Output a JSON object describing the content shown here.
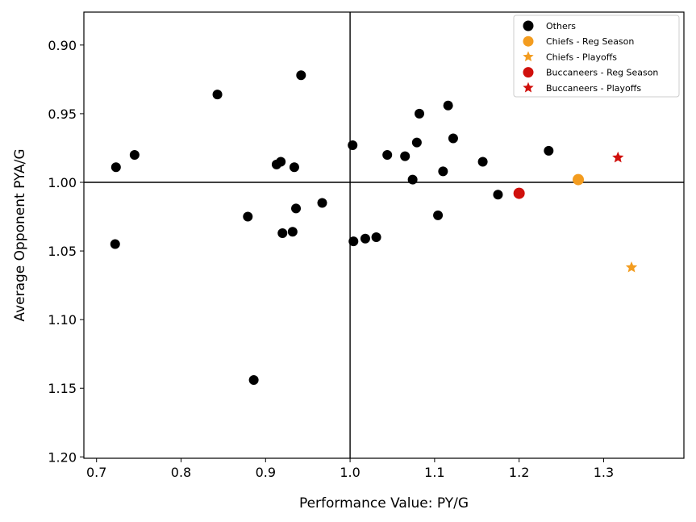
{
  "chart_data": {
    "type": "scatter",
    "title": "",
    "xlabel": "Performance Value: PY/G",
    "ylabel": "Average Opponent PYA/G",
    "xlim": [
      0.685,
      1.395
    ],
    "ylim": [
      0.876,
      1.201
    ],
    "y_inverted": true,
    "xticks": [
      0.7,
      0.8,
      0.9,
      1.0,
      1.1,
      1.2,
      1.3
    ],
    "xtick_labels": [
      "0.7",
      "0.8",
      "0.9",
      "1.0",
      "1.1",
      "1.2",
      "1.3"
    ],
    "yticks": [
      0.9,
      0.95,
      1.0,
      1.05,
      1.1,
      1.15,
      1.2
    ],
    "ytick_labels": [
      "0.90",
      "0.95",
      "1.00",
      "1.05",
      "1.10",
      "1.15",
      "1.20"
    ],
    "reference_lines": {
      "x": 1.0,
      "y": 1.0
    },
    "grid": false,
    "legend_position": "top-right",
    "series": [
      {
        "name": "Others",
        "color": "#000000",
        "marker": "circle",
        "points": [
          [
            0.723,
            0.989
          ],
          [
            0.745,
            0.98
          ],
          [
            0.722,
            1.045
          ],
          [
            0.843,
            0.936
          ],
          [
            0.942,
            0.922
          ],
          [
            0.879,
            1.025
          ],
          [
            0.886,
            1.144
          ],
          [
            0.913,
            0.987
          ],
          [
            0.918,
            0.985
          ],
          [
            0.934,
            0.989
          ],
          [
            0.92,
            1.037
          ],
          [
            0.932,
            1.036
          ],
          [
            0.936,
            1.019
          ],
          [
            0.967,
            1.015
          ],
          [
            1.003,
            0.973
          ],
          [
            1.004,
            1.043
          ],
          [
            1.018,
            1.041
          ],
          [
            1.031,
            1.04
          ],
          [
            1.044,
            0.98
          ],
          [
            1.065,
            0.981
          ],
          [
            1.074,
            0.998
          ],
          [
            1.079,
            0.971
          ],
          [
            1.082,
            0.95
          ],
          [
            1.104,
            1.024
          ],
          [
            1.11,
            0.992
          ],
          [
            1.116,
            0.944
          ],
          [
            1.122,
            0.968
          ],
          [
            1.157,
            0.985
          ],
          [
            1.175,
            1.009
          ],
          [
            1.235,
            0.977
          ]
        ]
      },
      {
        "name": "Chiefs - Reg Season",
        "color": "#f39c1f",
        "marker": "circle",
        "points": [
          [
            1.27,
            0.998
          ]
        ]
      },
      {
        "name": "Chiefs - Playoffs",
        "color": "#f39c1f",
        "marker": "star",
        "points": [
          [
            1.333,
            1.062
          ]
        ]
      },
      {
        "name": "Buccaneers - Reg Season",
        "color": "#d0100c",
        "marker": "circle",
        "points": [
          [
            1.2,
            1.008
          ]
        ]
      },
      {
        "name": "Buccaneers - Playoffs",
        "color": "#d0100c",
        "marker": "star",
        "points": [
          [
            1.317,
            0.982
          ]
        ]
      }
    ]
  }
}
